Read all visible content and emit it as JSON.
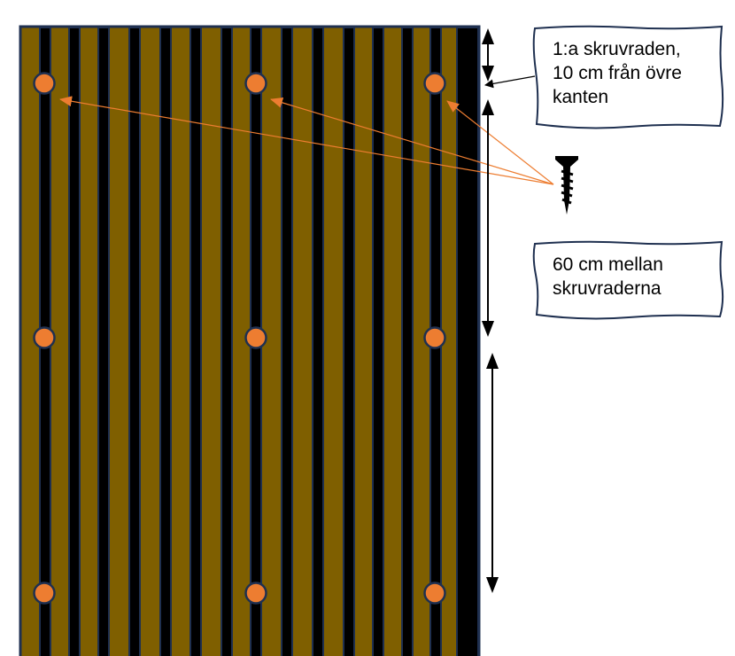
{
  "colors": {
    "board_brown": "#7F5F00",
    "gap_black": "#000000",
    "outline_navy": "#1F3050",
    "screw_orange": "#ED7D31"
  },
  "callouts": {
    "first_row": [
      "1:a skruvraden,",
      "10 cm från övre",
      "kanten"
    ],
    "row_spacing": [
      "60 cm mellan",
      "skruvraderna"
    ]
  },
  "icons": {
    "screw": "screw-icon"
  }
}
